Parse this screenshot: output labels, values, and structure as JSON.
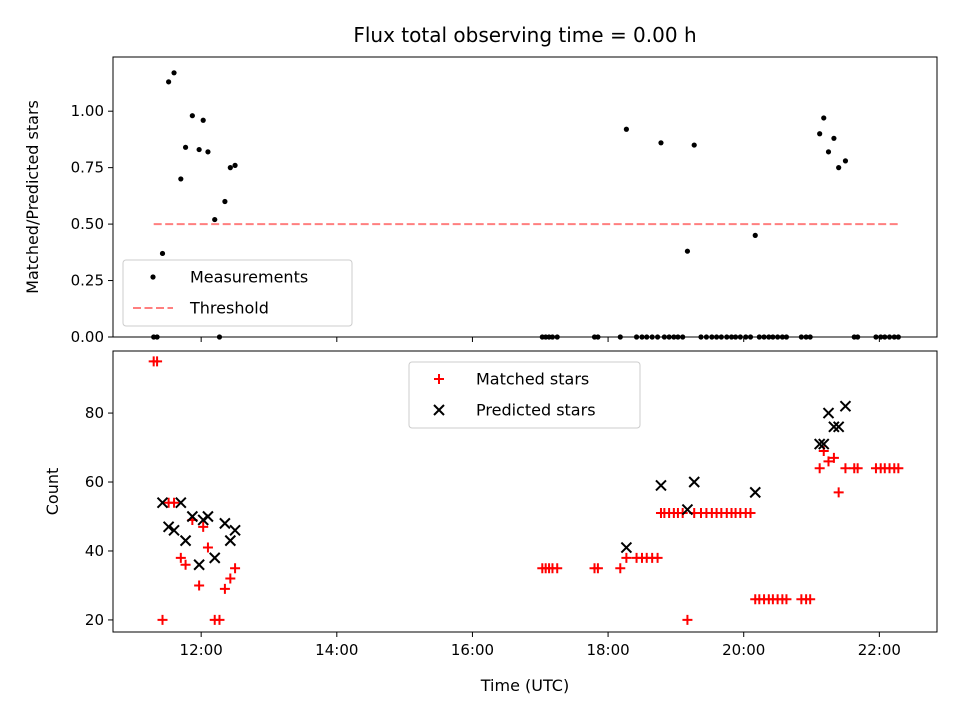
{
  "chart_data": [
    {
      "type": "scatter",
      "title": "Flux total observing time = 0.00 h",
      "xlabel": "",
      "ylabel": "Matched/Predicted stars",
      "xlim": [
        10.7,
        22.85
      ],
      "ylim": [
        0,
        1.24
      ],
      "yticks": [
        0.0,
        0.25,
        0.5,
        0.75,
        1.0
      ],
      "ytick_labels": [
        "0.00",
        "0.25",
        "0.50",
        "0.75",
        "1.00"
      ],
      "xticks": [
        12,
        14,
        16,
        18,
        20,
        22
      ],
      "show_xtick_labels": false,
      "legend": {
        "placement": "lower-left"
      },
      "series": [
        {
          "name": "Measurements",
          "marker": "dot",
          "color": "#000000",
          "x": [
            11.3,
            11.35,
            11.43,
            11.52,
            11.6,
            11.7,
            11.77,
            11.87,
            11.97,
            12.03,
            12.1,
            12.2,
            12.27,
            12.35,
            12.43,
            12.5,
            17.03,
            17.08,
            17.13,
            17.18,
            17.25,
            17.8,
            17.85,
            18.18,
            18.27,
            18.42,
            18.5,
            18.57,
            18.65,
            18.73,
            18.78,
            18.83,
            18.9,
            18.97,
            19.03,
            19.1,
            19.17,
            19.27,
            19.37,
            19.45,
            19.53,
            19.6,
            19.67,
            19.75,
            19.82,
            19.88,
            19.95,
            20.03,
            20.1,
            20.17,
            20.23,
            20.3,
            20.37,
            20.43,
            20.5,
            20.57,
            20.63,
            20.85,
            20.92,
            20.98,
            21.12,
            21.18,
            21.25,
            21.33,
            21.4,
            21.5,
            21.63,
            21.68,
            21.95,
            22.02,
            22.08,
            22.15,
            22.22,
            22.28
          ],
          "y": [
            0.0,
            0.0,
            0.37,
            1.13,
            1.17,
            0.7,
            0.84,
            0.98,
            0.83,
            0.96,
            0.82,
            0.52,
            0.0,
            0.6,
            0.75,
            0.76,
            0.0,
            0.0,
            0.0,
            0.0,
            0.0,
            0.0,
            0.0,
            0.0,
            0.92,
            0.0,
            0.0,
            0.0,
            0.0,
            0.0,
            0.86,
            0.0,
            0.0,
            0.0,
            0.0,
            0.0,
            0.38,
            0.85,
            0.0,
            0.0,
            0.0,
            0.0,
            0.0,
            0.0,
            0.0,
            0.0,
            0.0,
            0.0,
            0.0,
            0.45,
            0.0,
            0.0,
            0.0,
            0.0,
            0.0,
            0.0,
            0.0,
            0.0,
            0.0,
            0.0,
            0.9,
            0.97,
            0.82,
            0.88,
            0.75,
            0.78,
            0.0,
            0.0,
            0.0,
            0.0,
            0.0,
            0.0,
            0.0,
            0.0
          ]
        },
        {
          "name": "Threshold",
          "marker": "dashed-line",
          "color": "#ff7f7f",
          "x": [
            11.3,
            22.3
          ],
          "y": [
            0.5,
            0.5
          ]
        }
      ]
    },
    {
      "type": "scatter",
      "title": "",
      "xlabel": "Time (UTC)",
      "ylabel": "Count",
      "xlim": [
        10.7,
        22.85
      ],
      "ylim": [
        16.5,
        98
      ],
      "yticks": [
        20,
        40,
        60,
        80
      ],
      "ytick_labels": [
        "20",
        "40",
        "60",
        "80"
      ],
      "xticks": [
        12,
        14,
        16,
        18,
        20,
        22
      ],
      "xtick_labels": [
        "12:00",
        "14:00",
        "16:00",
        "18:00",
        "20:00",
        "22:00"
      ],
      "legend": {
        "placement": "upper-center"
      },
      "series": [
        {
          "name": "Matched stars",
          "marker": "plus",
          "color": "#ff0000",
          "x": [
            11.3,
            11.35,
            11.43,
            11.52,
            11.6,
            11.7,
            11.77,
            11.87,
            11.97,
            12.03,
            12.1,
            12.2,
            12.27,
            12.35,
            12.43,
            12.5,
            17.03,
            17.08,
            17.13,
            17.18,
            17.25,
            17.8,
            17.85,
            18.18,
            18.27,
            18.42,
            18.5,
            18.57,
            18.65,
            18.73,
            18.78,
            18.83,
            18.9,
            18.97,
            19.03,
            19.1,
            19.17,
            19.27,
            19.37,
            19.45,
            19.53,
            19.6,
            19.67,
            19.75,
            19.82,
            19.88,
            19.95,
            20.03,
            20.1,
            20.17,
            20.23,
            20.3,
            20.37,
            20.43,
            20.5,
            20.57,
            20.63,
            20.85,
            20.92,
            20.98,
            21.12,
            21.18,
            21.25,
            21.33,
            21.4,
            21.5,
            21.63,
            21.68,
            21.95,
            22.02,
            22.08,
            22.15,
            22.22,
            22.28
          ],
          "y": [
            95,
            95,
            20,
            54,
            54,
            38,
            36,
            49,
            30,
            47,
            41,
            20,
            20,
            29,
            32,
            35,
            35,
            35,
            35,
            35,
            35,
            35,
            35,
            35,
            38,
            38,
            38,
            38,
            38,
            38,
            51,
            51,
            51,
            51,
            51,
            51,
            20,
            51,
            51,
            51,
            51,
            51,
            51,
            51,
            51,
            51,
            51,
            51,
            51,
            26,
            26,
            26,
            26,
            26,
            26,
            26,
            26,
            26,
            26,
            26,
            64,
            69,
            66,
            67,
            57,
            64,
            64,
            64,
            64,
            64,
            64,
            64,
            64,
            64
          ]
        },
        {
          "name": "Predicted stars",
          "marker": "x",
          "color": "#000000",
          "x": [
            11.43,
            11.52,
            11.6,
            11.7,
            11.77,
            11.87,
            11.97,
            12.03,
            12.1,
            12.2,
            12.35,
            12.43,
            12.5,
            18.27,
            18.78,
            19.17,
            19.27,
            20.17,
            21.12,
            21.18,
            21.25,
            21.33,
            21.4,
            21.5
          ],
          "y": [
            54,
            47,
            46,
            54,
            43,
            50,
            36,
            49,
            50,
            38,
            48,
            43,
            46,
            41,
            59,
            52,
            60,
            57,
            71,
            71,
            80,
            76,
            76,
            82
          ]
        }
      ]
    }
  ]
}
